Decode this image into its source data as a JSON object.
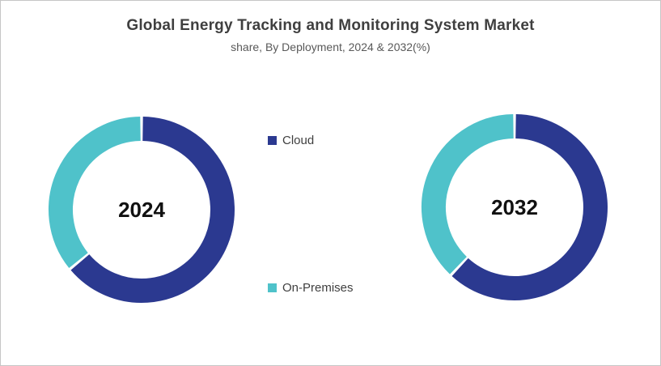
{
  "header": {
    "title": "Global Energy Tracking and Monitoring System Market",
    "subtitle": "share, By Deployment, 2024 & 2032(%)"
  },
  "legend": {
    "items": [
      {
        "label": "Cloud",
        "color": "#2B3990"
      },
      {
        "label": "On-Premises",
        "color": "#4FC2CA"
      }
    ]
  },
  "chart_data": [
    {
      "type": "pie",
      "subtype": "donut",
      "center_label": "2024",
      "categories": [
        "Cloud",
        "On-Premises"
      ],
      "values": [
        64,
        36
      ],
      "unit": "%",
      "colors": [
        "#2B3990",
        "#4FC2CA"
      ],
      "start_angle_deg": 0,
      "direction": "clockwise",
      "segment_separator_color": "#FFFFFF"
    },
    {
      "type": "pie",
      "subtype": "donut",
      "center_label": "2032",
      "categories": [
        "Cloud",
        "On-Premises"
      ],
      "values": [
        62,
        38
      ],
      "unit": "%",
      "colors": [
        "#2B3990",
        "#4FC2CA"
      ],
      "start_angle_deg": 0,
      "direction": "clockwise",
      "segment_separator_color": "#FFFFFF"
    }
  ]
}
